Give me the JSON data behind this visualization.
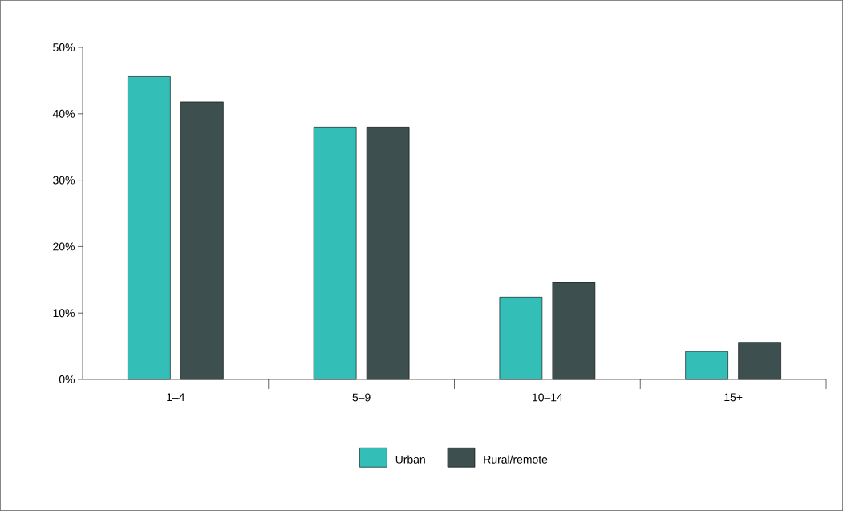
{
  "chart_data": {
    "type": "bar",
    "categories": [
      "1–4",
      "5–9",
      "10–14",
      "15+"
    ],
    "series": [
      {
        "name": "Urban",
        "color": "#33bfb8",
        "values": [
          45.6,
          38.0,
          12.4,
          4.2
        ]
      },
      {
        "name": "Rural/remote",
        "color": "#3d4f4f",
        "values": [
          41.8,
          38.0,
          14.6,
          5.6
        ]
      }
    ],
    "ylim": [
      0,
      50
    ],
    "yticks": [
      {
        "value": 0,
        "label": "0%"
      },
      {
        "value": 10,
        "label": "10%"
      },
      {
        "value": 20,
        "label": "20%"
      },
      {
        "value": 30,
        "label": "30%"
      },
      {
        "value": 40,
        "label": "40%"
      },
      {
        "value": 50,
        "label": "50%"
      }
    ],
    "legend": "bottom"
  }
}
